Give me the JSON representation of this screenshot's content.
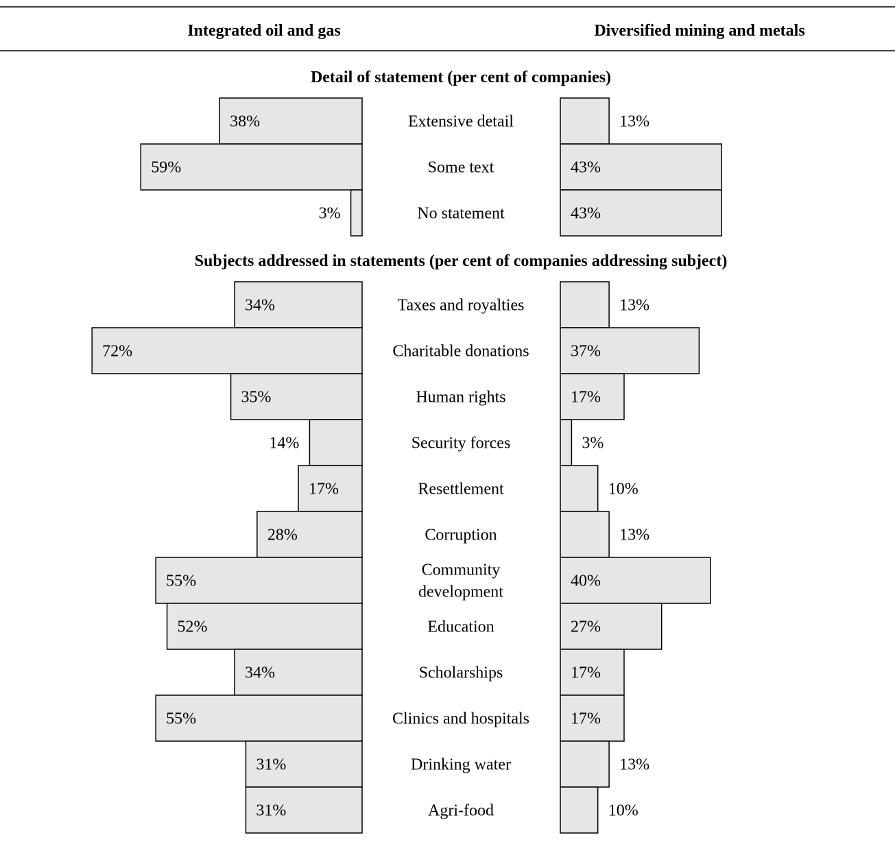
{
  "chart_data": {
    "type": "bar",
    "column_headers": {
      "left": "Integrated oil and gas",
      "right": "Diversified mining and metals"
    },
    "sections": [
      {
        "title": "Detail of statement (per cent of companies)",
        "categories": [
          "Extensive detail",
          "Some text",
          "No statement"
        ],
        "series": [
          {
            "name": "Integrated oil and gas",
            "values": [
              38,
              59,
              3
            ]
          },
          {
            "name": "Diversified mining and metals",
            "values": [
              13,
              43,
              43
            ]
          }
        ]
      },
      {
        "title": "Subjects addressed in statements (per cent of companies addressing subject)",
        "categories": [
          "Taxes and royalties",
          "Charitable donations",
          "Human rights",
          "Security forces",
          "Resettlement",
          "Corruption",
          "Community development",
          "Education",
          "Scholarships",
          "Clinics and hospitals",
          "Drinking water",
          "Agri-food"
        ],
        "series": [
          {
            "name": "Integrated oil and gas",
            "values": [
              34,
              72,
              35,
              14,
              17,
              28,
              55,
              52,
              34,
              55,
              31,
              31
            ]
          },
          {
            "name": "Diversified mining and metals",
            "values": [
              13,
              37,
              17,
              3,
              10,
              13,
              40,
              27,
              17,
              17,
              13,
              10
            ]
          }
        ]
      }
    ],
    "value_suffix": "%",
    "category_lines": {
      "Community development": [
        "Community",
        "development"
      ]
    },
    "colors": {
      "bar_fill": "#e6e6e6",
      "bar_stroke": "#000000"
    }
  }
}
